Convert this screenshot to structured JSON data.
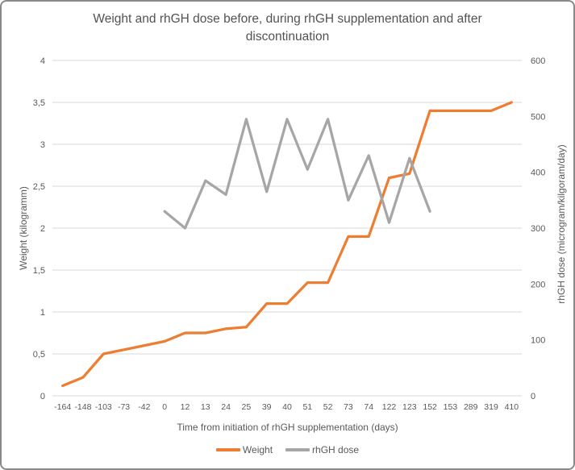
{
  "chart_data": {
    "type": "line",
    "title": "Weight and rhGH dose before, during rhGH supplementation and after discontinuation",
    "xlabel": "Time from initiation of rhGH supplementation (days)",
    "x_categories": [
      "-164",
      "-148",
      "-103",
      "-73",
      "-42",
      "0",
      "12",
      "13",
      "24",
      "25",
      "39",
      "40",
      "51",
      "52",
      "73",
      "74",
      "122",
      "123",
      "152",
      "153",
      "289",
      "319",
      "410"
    ],
    "left_axis": {
      "label": "Weight (kilogramm)",
      "min": 0,
      "max": 4,
      "tick_labels": [
        "4",
        "3,5",
        "3",
        "2,5",
        "2",
        "1,5",
        "1",
        "0,5",
        "0"
      ],
      "tick_values": [
        4,
        3.5,
        3,
        2.5,
        2,
        1.5,
        1,
        0.5,
        0
      ]
    },
    "right_axis": {
      "label": "rhGH dose (microgram/kilgoram/day)",
      "min": 0,
      "max": 600,
      "tick_labels": [
        "600",
        "500",
        "400",
        "300",
        "200",
        "100",
        "0"
      ],
      "tick_values": [
        600,
        500,
        400,
        300,
        200,
        100,
        0
      ]
    },
    "series": [
      {
        "name": "Weight",
        "axis": "left",
        "color": "#ED7D31",
        "values": [
          0.12,
          0.22,
          0.5,
          0.55,
          0.6,
          0.65,
          0.75,
          0.75,
          0.8,
          0.82,
          1.1,
          1.1,
          1.35,
          1.35,
          1.9,
          1.9,
          2.6,
          2.65,
          3.4,
          3.4,
          3.4,
          3.4,
          3.5
        ]
      },
      {
        "name": "rhGH dose",
        "axis": "right",
        "color": "#A6A6A6",
        "values": [
          null,
          null,
          null,
          null,
          null,
          330,
          300,
          385,
          360,
          495,
          365,
          495,
          405,
          495,
          350,
          430,
          310,
          425,
          330,
          null,
          null,
          null,
          null
        ]
      }
    ],
    "grid": true,
    "legend_position": "bottom",
    "colors": {
      "gridline": "#D9D9D9",
      "tick_text": "#595959",
      "title_text": "#525252"
    }
  }
}
